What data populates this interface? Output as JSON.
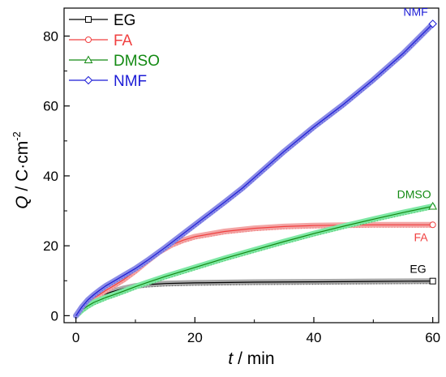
{
  "chart_data": {
    "type": "line",
    "xlabel_italic": "t",
    "xlabel_rest": " / min",
    "ylabel_italic": "Q",
    "ylabel_rest": " / C·cm",
    "ylabel_sup": "-2",
    "xlim": [
      -2,
      61
    ],
    "ylim": [
      -2,
      88
    ],
    "xticks": [
      "0",
      "20",
      "40",
      "60"
    ],
    "yticks": [
      "0",
      "20",
      "40",
      "60",
      "80"
    ],
    "grid": false,
    "legend_position": "top-left",
    "series": [
      {
        "name": "EG",
        "color": "#000000",
        "fill": "#a8a8a8",
        "marker": "square",
        "end_label": "EG",
        "points": [
          [
            0,
            0
          ],
          [
            0.5,
            1.2
          ],
          [
            1,
            2.2
          ],
          [
            2,
            3.5
          ],
          [
            3,
            4.6
          ],
          [
            4,
            5.5
          ],
          [
            5,
            6.2
          ],
          [
            6,
            6.8
          ],
          [
            7,
            7.3
          ],
          [
            8,
            7.8
          ],
          [
            10,
            8.5
          ],
          [
            12,
            8.9
          ],
          [
            15,
            9.2
          ],
          [
            20,
            9.4
          ],
          [
            30,
            9.6
          ],
          [
            40,
            9.7
          ],
          [
            50,
            9.8
          ],
          [
            60,
            9.9
          ]
        ]
      },
      {
        "name": "FA",
        "color": "#f04040",
        "fill": "#f3a5a5",
        "marker": "circle",
        "end_label": "FA",
        "points": [
          [
            0,
            0
          ],
          [
            1,
            2
          ],
          [
            2,
            3.6
          ],
          [
            3,
            5
          ],
          [
            4,
            6.1
          ],
          [
            5,
            7.2
          ],
          [
            6,
            8.2
          ],
          [
            8,
            10.3
          ],
          [
            10,
            12.8
          ],
          [
            12,
            15.6
          ],
          [
            14,
            18.2
          ],
          [
            16,
            20.2
          ],
          [
            18,
            21.6
          ],
          [
            20,
            22.6
          ],
          [
            25,
            24.1
          ],
          [
            30,
            25
          ],
          [
            35,
            25.5
          ],
          [
            40,
            25.8
          ],
          [
            50,
            26
          ],
          [
            60,
            26
          ]
        ]
      },
      {
        "name": "DMSO",
        "color": "#138a13",
        "fill": "#7ee8a4",
        "marker": "triangle",
        "end_label": "DMSO",
        "points": [
          [
            0,
            0
          ],
          [
            1,
            1.6
          ],
          [
            2,
            2.8
          ],
          [
            3,
            3.8
          ],
          [
            4,
            4.5
          ],
          [
            5,
            5.2
          ],
          [
            6,
            5.8
          ],
          [
            8,
            7
          ],
          [
            10,
            8.3
          ],
          [
            12,
            9.5
          ],
          [
            15,
            11.2
          ],
          [
            20,
            13.8
          ],
          [
            25,
            16.4
          ],
          [
            30,
            18.8
          ],
          [
            35,
            21.2
          ],
          [
            40,
            23.5
          ],
          [
            45,
            25.6
          ],
          [
            50,
            27.6
          ],
          [
            55,
            29.5
          ],
          [
            60,
            31.3
          ]
        ]
      },
      {
        "name": "NMF",
        "color": "#1c1cd6",
        "fill": "#8a8ae6",
        "marker": "diamond",
        "end_label": "NMF",
        "points": [
          [
            0,
            0
          ],
          [
            1,
            2.5
          ],
          [
            2,
            4.5
          ],
          [
            3,
            6
          ],
          [
            4,
            7.3
          ],
          [
            5,
            8.5
          ],
          [
            6,
            9.5
          ],
          [
            8,
            11.5
          ],
          [
            10,
            13.5
          ],
          [
            12,
            15.8
          ],
          [
            15,
            19.5
          ],
          [
            20,
            26
          ],
          [
            25,
            32.5
          ],
          [
            28,
            36.5
          ],
          [
            30,
            39.5
          ],
          [
            32,
            42.5
          ],
          [
            35,
            47
          ],
          [
            40,
            54
          ],
          [
            45,
            60.5
          ],
          [
            50,
            67.5
          ],
          [
            55,
            75
          ],
          [
            60,
            83.5
          ]
        ]
      }
    ]
  }
}
